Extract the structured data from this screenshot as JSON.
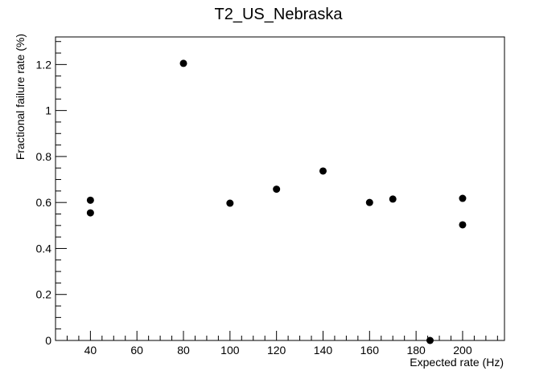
{
  "chart_data": {
    "type": "scatter",
    "title": "T2_US_Nebraska",
    "xlabel": "Expected rate (Hz)",
    "ylabel": "Fractional failure rate (%)",
    "xlim": [
      25,
      218
    ],
    "ylim": [
      0,
      1.32
    ],
    "x_ticks": [
      40,
      60,
      80,
      100,
      120,
      140,
      160,
      180,
      200
    ],
    "y_ticks": [
      0,
      0.2,
      0.4,
      0.6,
      0.8,
      1,
      1.2
    ],
    "y_tick_labels": [
      "0",
      "0.2",
      "0.4",
      "0.6",
      "0.8",
      "1",
      "1.2"
    ],
    "grid": false,
    "points": [
      {
        "x": 40,
        "y": 0.61
      },
      {
        "x": 40,
        "y": 0.555
      },
      {
        "x": 80,
        "y": 1.205
      },
      {
        "x": 100,
        "y": 0.597
      },
      {
        "x": 120,
        "y": 0.658
      },
      {
        "x": 140,
        "y": 0.737
      },
      {
        "x": 160,
        "y": 0.6
      },
      {
        "x": 170,
        "y": 0.615
      },
      {
        "x": 186,
        "y": 0.0
      },
      {
        "x": 200,
        "y": 0.618
      },
      {
        "x": 200,
        "y": 0.503
      }
    ],
    "marker_color": "#000000"
  }
}
